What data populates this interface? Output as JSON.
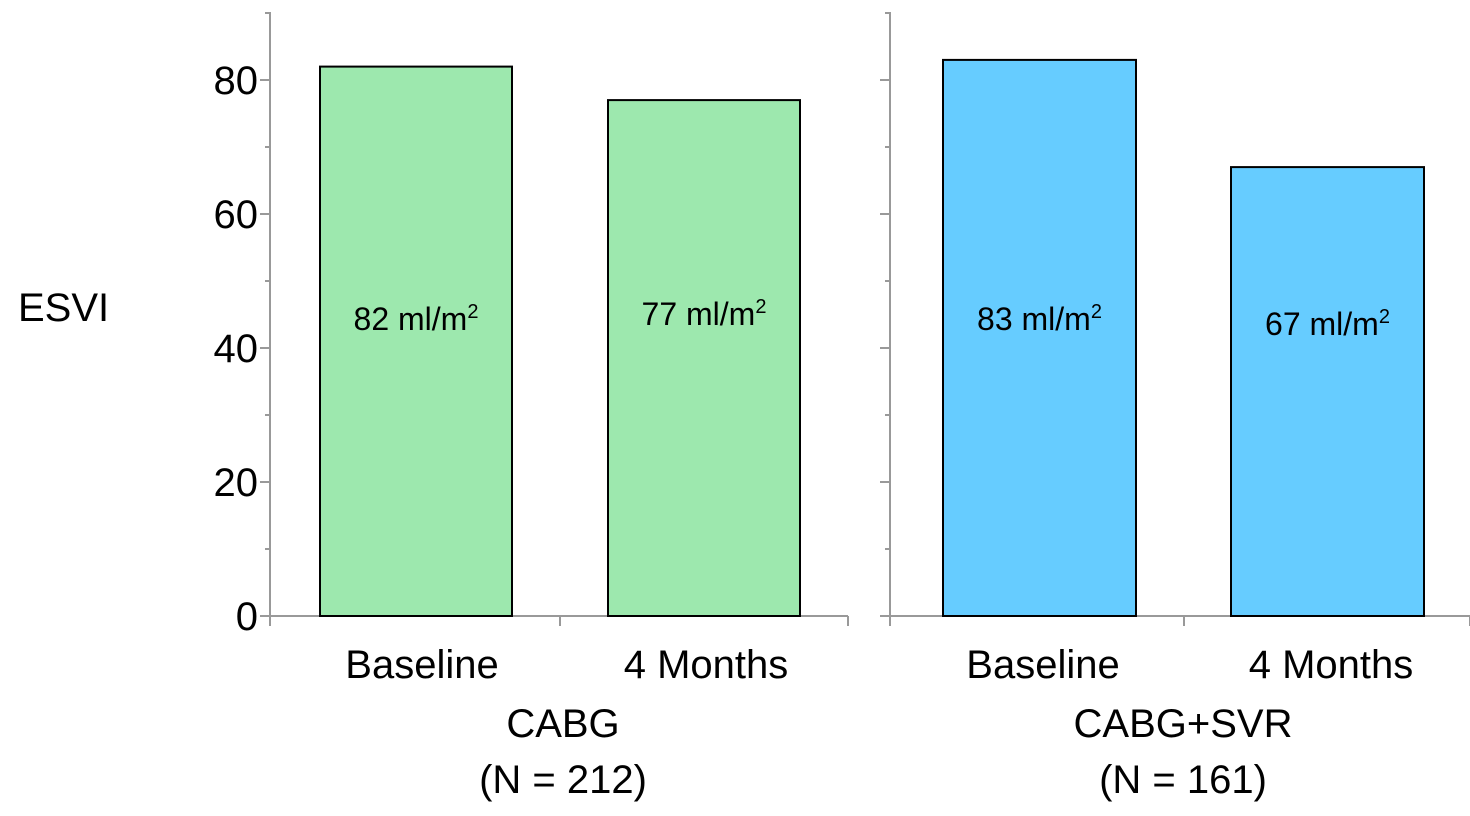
{
  "chart_data": {
    "type": "bar",
    "ylabel": "ESVI",
    "ylim": [
      0,
      90
    ],
    "yticks": [
      0,
      20,
      40,
      60,
      80
    ],
    "grid": false,
    "panels": [
      {
        "group_label": "CABG",
        "n_label": "(N = 212)",
        "color": "#9de8ae",
        "categories": [
          "Baseline",
          "4 Months"
        ],
        "values": [
          82,
          77
        ],
        "value_labels": [
          {
            "text": "82 ml/m",
            "sup": "2"
          },
          {
            "text": "77 ml/m",
            "sup": "2"
          }
        ]
      },
      {
        "group_label": "CABG+SVR",
        "n_label": "(N = 161)",
        "color": "#66ccff",
        "categories": [
          "Baseline",
          "4 Months"
        ],
        "values": [
          83,
          67
        ],
        "value_labels": [
          {
            "text": "83 ml/m",
            "sup": "2"
          },
          {
            "text": "67 ml/m",
            "sup": "2"
          }
        ]
      }
    ]
  }
}
